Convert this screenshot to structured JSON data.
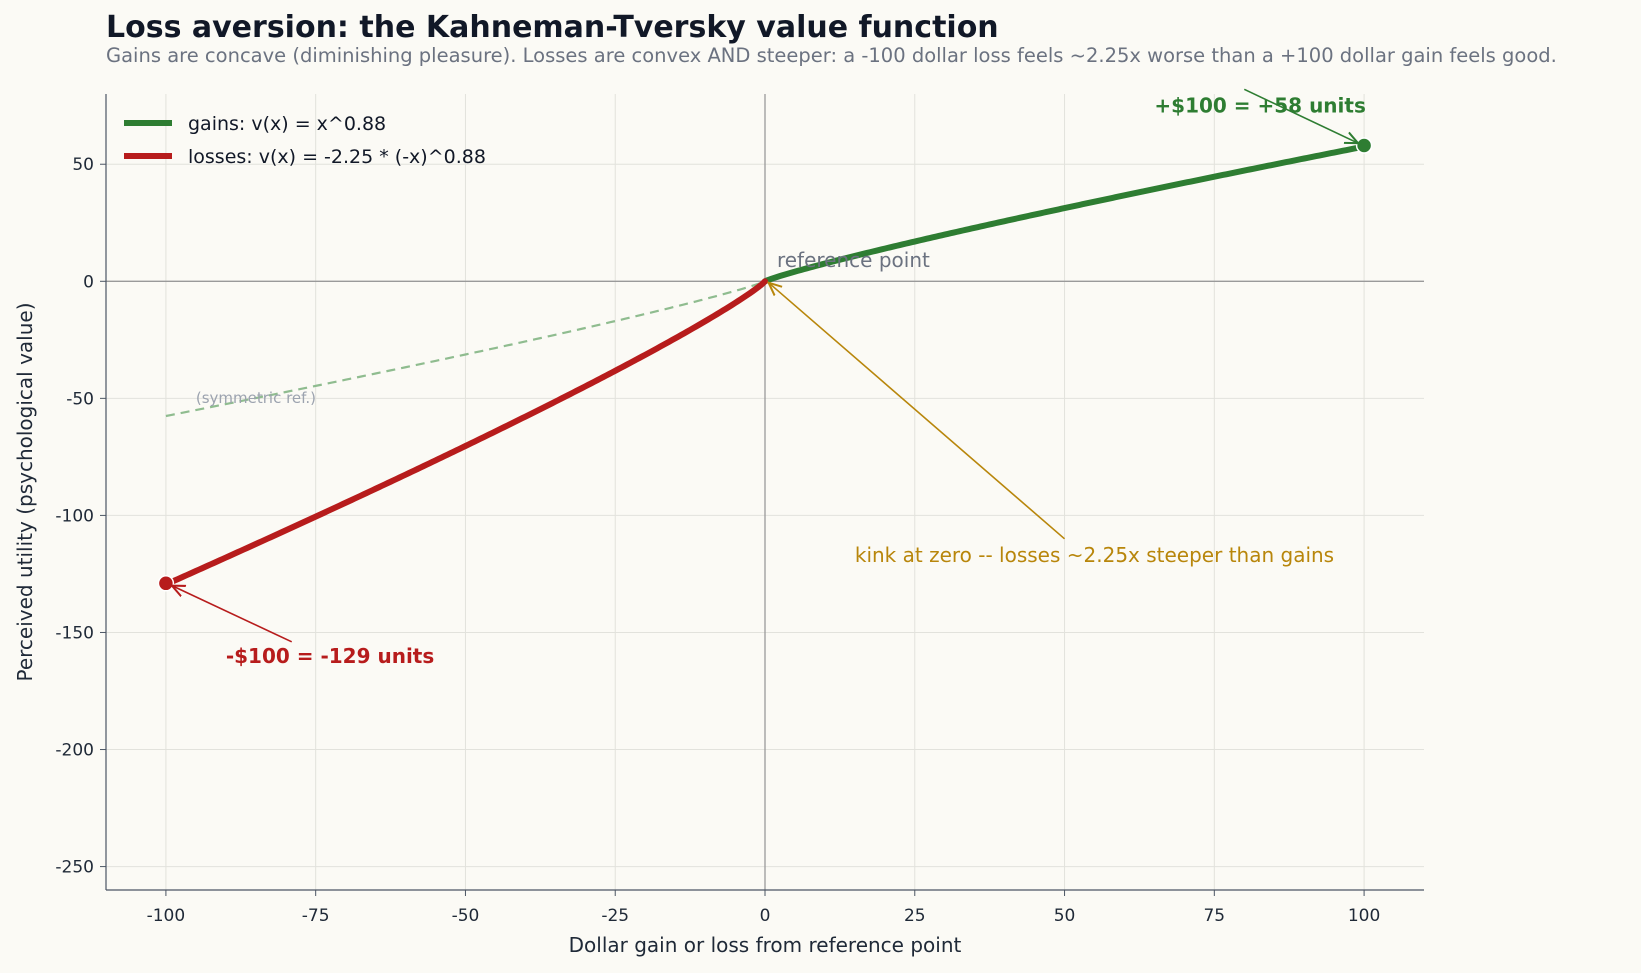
{
  "chart_data": {
    "type": "line",
    "title": "Loss aversion: the Kahneman-Tversky value function",
    "subtitle": "Gains are concave (diminishing pleasure). Losses are convex AND steeper: a -100 dollar loss feels ~2.25x worse than a +100 dollar gain feels good.",
    "xlabel": "Dollar gain or loss from reference point",
    "ylabel": "Perceived utility (psychological value)",
    "xlim": [
      -110,
      110
    ],
    "ylim": [
      -260,
      80
    ],
    "xticks": [
      -100,
      -75,
      -50,
      -25,
      0,
      25,
      50,
      75,
      100
    ],
    "yticks": [
      50,
      0,
      -50,
      -100,
      -150,
      -200,
      -250
    ],
    "grid": true,
    "legend_position": "top-left",
    "series": [
      {
        "name": "gains: v(x) = x^0.88",
        "color": "#2e7d32",
        "alpha": 0.88,
        "lambda": 1,
        "domain": [
          0,
          100
        ]
      },
      {
        "name": "losses: v(x) = -2.25 * (-x)^0.88",
        "color": "#b71c1c",
        "alpha": 0.88,
        "lambda": 2.25,
        "domain": [
          -100,
          0
        ]
      }
    ],
    "reference_line": {
      "label": "(symmetric ref.)",
      "color": "#8fbc8f",
      "domain": [
        -100,
        0
      ]
    },
    "markers": [
      {
        "x": 100,
        "y": 58,
        "color": "#2e7d32"
      },
      {
        "x": -100,
        "y": -129,
        "color": "#b71c1c"
      }
    ],
    "annotations": [
      {
        "text": "+$100 = +58 units",
        "color": "#2e7d32",
        "bold": true,
        "text_at": [
          65,
          72
        ],
        "arrow_from": [
          80,
          82
        ],
        "arrow_to": [
          99,
          59
        ]
      },
      {
        "text": "-$100 = -129 units",
        "color": "#b71c1c",
        "bold": true,
        "text_at": [
          -90,
          -163
        ],
        "arrow_from": [
          -79,
          -154
        ],
        "arrow_to": [
          -99,
          -130
        ]
      },
      {
        "text": "reference point",
        "color": "#6b7280",
        "bold": false,
        "text_at": [
          2,
          6
        ]
      },
      {
        "text": "kink at zero -- losses ~2.25x steeper than gains",
        "color": "#b8860b",
        "bold": false,
        "text_at": [
          15,
          -120
        ],
        "arrow_from": [
          50,
          -110
        ],
        "arrow_to": [
          0.6,
          -0.6
        ]
      }
    ]
  }
}
